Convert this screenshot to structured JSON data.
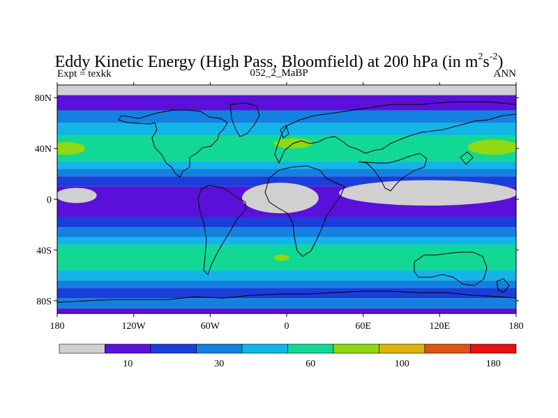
{
  "title": {
    "prefix": "Eddy Kinetic Energy (High Pass, Bloomfield) at 200 hPa (in m",
    "sup1": "2",
    "mid": "s",
    "sup2": "-2",
    "suffix": ")"
  },
  "subtitles": {
    "left": "Expt = texkk",
    "center": "052_2_MaBP",
    "right": "ANN"
  },
  "chart_data": {
    "type": "heatmap",
    "title": "Eddy Kinetic Energy (High Pass, Bloomfield) at 200 hPa (in m^2 s^-2)",
    "experiment": "texkk",
    "case": "052_2_MaBP",
    "season": "ANN",
    "xlim": [
      -180,
      180
    ],
    "ylim": [
      -90,
      90
    ],
    "x_ticks": [
      {
        "value": -180,
        "label": "180"
      },
      {
        "value": -120,
        "label": "120W"
      },
      {
        "value": -60,
        "label": "60W"
      },
      {
        "value": 0,
        "label": "0"
      },
      {
        "value": 60,
        "label": "60E"
      },
      {
        "value": 120,
        "label": "120E"
      },
      {
        "value": 180,
        "label": "180"
      }
    ],
    "y_ticks": [
      {
        "value": 80,
        "label": "80N"
      },
      {
        "value": 40,
        "label": "40N"
      },
      {
        "value": 0,
        "label": "0"
      },
      {
        "value": -40,
        "label": "40S"
      },
      {
        "value": -80,
        "label": "80S"
      }
    ],
    "bands": [
      {
        "lat_top": 90,
        "lat_bottom": 82,
        "level": 0
      },
      {
        "lat_top": 82,
        "lat_bottom": 70,
        "level": 1
      },
      {
        "lat_top": 70,
        "lat_bottom": 60,
        "level": 3
      },
      {
        "lat_top": 60,
        "lat_bottom": 50,
        "level": 4
      },
      {
        "lat_top": 50,
        "lat_bottom": 30,
        "level": 5
      },
      {
        "lat_top": 30,
        "lat_bottom": 24,
        "level": 4
      },
      {
        "lat_top": 24,
        "lat_bottom": 18,
        "level": 3
      },
      {
        "lat_top": 18,
        "lat_bottom": 10,
        "level": 2
      },
      {
        "lat_top": 10,
        "lat_bottom": -14,
        "level": 1
      },
      {
        "lat_top": -14,
        "lat_bottom": -22,
        "level": 2
      },
      {
        "lat_top": -22,
        "lat_bottom": -30,
        "level": 3
      },
      {
        "lat_top": -30,
        "lat_bottom": -36,
        "level": 4
      },
      {
        "lat_top": -36,
        "lat_bottom": -56,
        "level": 5
      },
      {
        "lat_top": -56,
        "lat_bottom": -64,
        "level": 4
      },
      {
        "lat_top": -64,
        "lat_bottom": -70,
        "level": 3
      },
      {
        "lat_top": -70,
        "lat_bottom": -78,
        "level": 2
      },
      {
        "lat_top": -78,
        "lat_bottom": -86,
        "level": 3
      },
      {
        "lat_top": -86,
        "lat_bottom": -90,
        "level": 1
      }
    ],
    "patches": [
      {
        "shape": "ellipse",
        "lon": -173,
        "lat": 40,
        "rlon": 15,
        "rlat": 5,
        "level": 6
      },
      {
        "shape": "ellipse",
        "lon": 5,
        "lat": 44,
        "rlon": 15,
        "rlat": 4,
        "level": 6
      },
      {
        "shape": "ellipse",
        "lon": 162,
        "lat": 41,
        "rlon": 20,
        "rlat": 6,
        "level": 6
      },
      {
        "shape": "ellipse",
        "lon": -4,
        "lat": -46,
        "rlon": 6,
        "rlat": 2.5,
        "level": 6
      },
      {
        "shape": "ellipse",
        "lon": -5,
        "lat": 1,
        "rlon": 30,
        "rlat": 12,
        "level": 0
      },
      {
        "shape": "ellipse",
        "lon": 111,
        "lat": 5,
        "rlon": 70,
        "rlat": 10,
        "level": 0
      },
      {
        "shape": "ellipse",
        "lon": -165,
        "lat": 3,
        "rlon": 16,
        "rlat": 6,
        "level": 0
      }
    ],
    "colorbar": {
      "levels": 10,
      "labeled_ticks": [
        {
          "index": 1,
          "label": "10"
        },
        {
          "index": 3,
          "label": "30"
        },
        {
          "index": 5,
          "label": "60"
        },
        {
          "index": 7,
          "label": "100"
        },
        {
          "index": 9,
          "label": "180"
        }
      ]
    },
    "colors": [
      "#d0d0d0",
      "#5a10d8",
      "#1a3ed8",
      "#1480e0",
      "#12b6e6",
      "#12d896",
      "#90d810",
      "#dcb40c",
      "#de5412",
      "#e81010"
    ]
  }
}
